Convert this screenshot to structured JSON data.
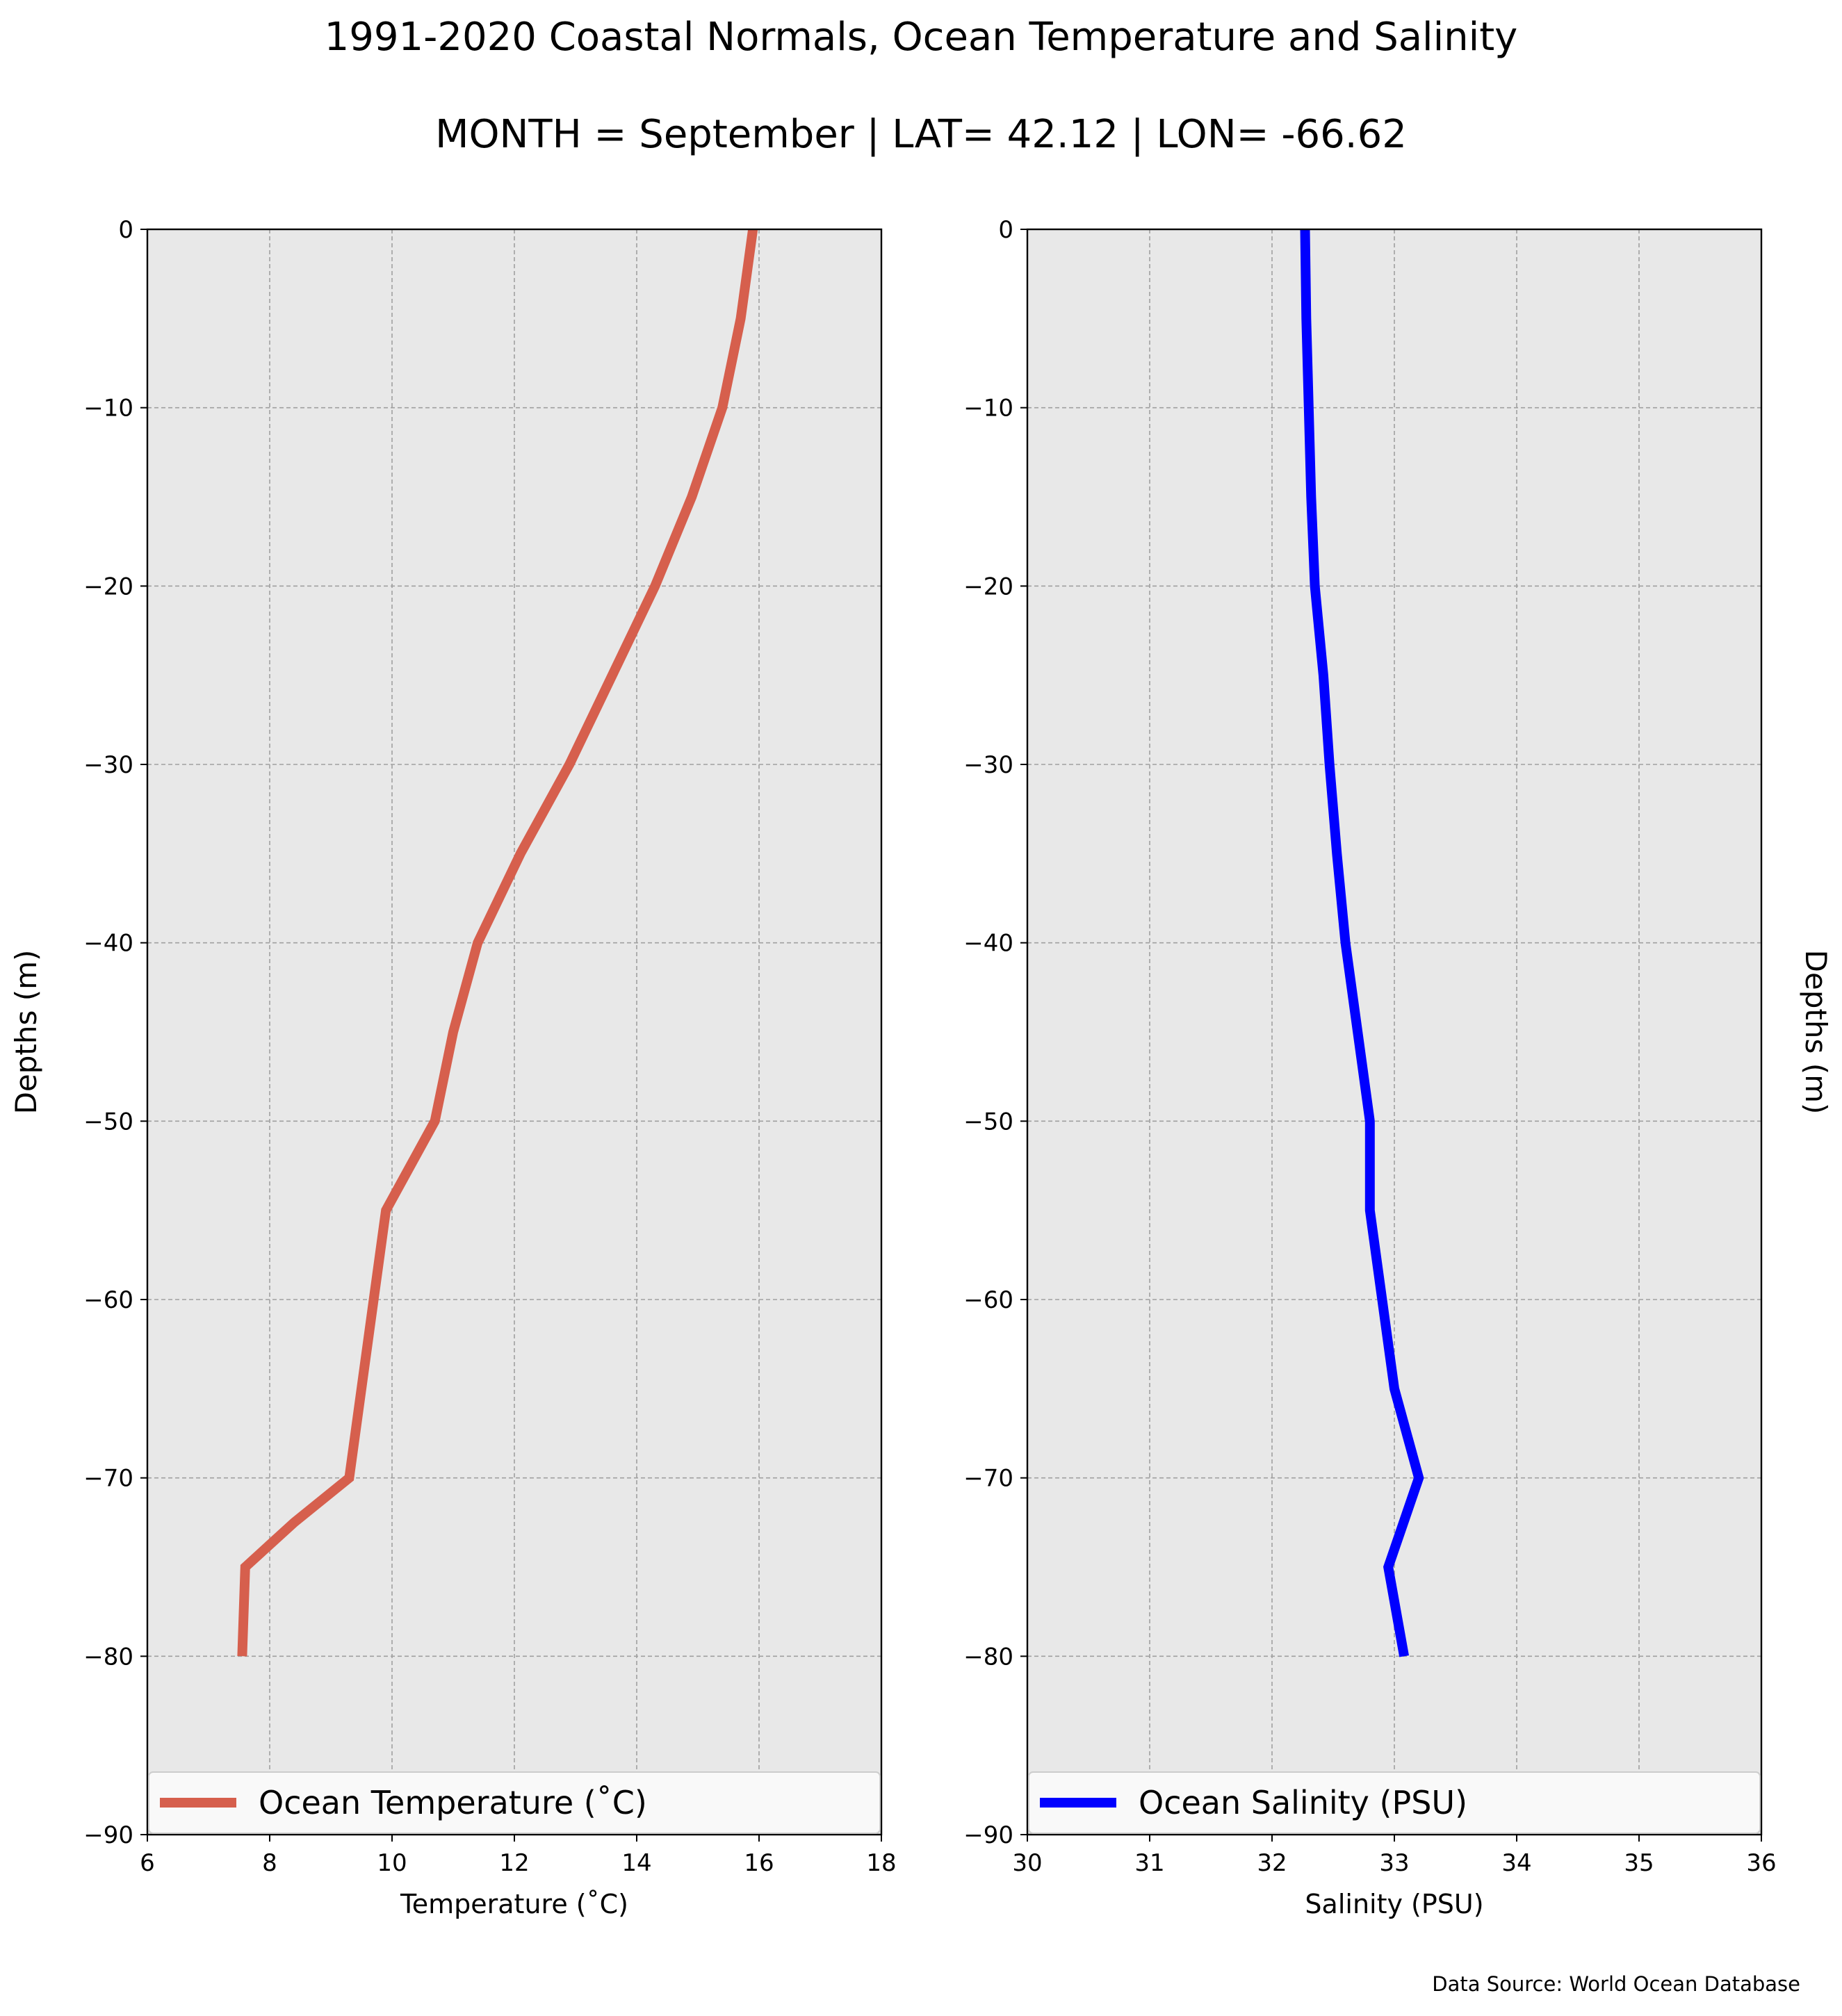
{
  "figure": {
    "title_line1": "1991-2020 Coastal Normals, Ocean Temperature and Salinity",
    "title_line2": "MONTH = September | LAT= 42.12 | LON= -66.62",
    "source": "Data Source: World Ocean Database"
  },
  "colors": {
    "plot_background": "#e8e8e8",
    "grid": "#a0a0a0",
    "temperature_line": "#d65f4d",
    "salinity_line": "#0000ff"
  },
  "chart_data": [
    {
      "type": "line",
      "orientation": "depth-profile",
      "xlabel": "Temperature ($^\\circ$C)",
      "xlabel_display": "Temperature (˚C)",
      "ylabel": "Depths (m)",
      "xlim": [
        6,
        18
      ],
      "ylim": [
        -90,
        0
      ],
      "xticks": [
        "6",
        "8",
        "10",
        "12",
        "14",
        "16",
        "18"
      ],
      "yticks": [
        "0",
        "−10",
        "−20",
        "−30",
        "−40",
        "−50",
        "−60",
        "−70",
        "−80",
        "−90"
      ],
      "grid": true,
      "legend_position": "lower",
      "series": [
        {
          "name": "Ocean Temperature (˚C)",
          "x": [
            15.9,
            15.7,
            15.4,
            14.9,
            14.3,
            13.6,
            12.9,
            12.1,
            11.4,
            11.0,
            10.7,
            9.9,
            9.7,
            9.5,
            9.3,
            8.4,
            7.6,
            7.55
          ],
          "y": [
            0,
            -5,
            -10,
            -15,
            -20,
            -25,
            -30,
            -35,
            -40,
            -45,
            -50,
            -55,
            -60,
            -65,
            -70,
            -72.5,
            -75,
            -80
          ]
        }
      ]
    },
    {
      "type": "line",
      "orientation": "depth-profile",
      "xlabel": "Salinity (PSU)",
      "ylabel": "Depths (m)",
      "xlim": [
        30,
        36
      ],
      "ylim": [
        -90,
        0
      ],
      "xticks": [
        "30",
        "31",
        "32",
        "33",
        "34",
        "35",
        "36"
      ],
      "yticks": [
        "0",
        "−10",
        "−20",
        "−30",
        "−40",
        "−50",
        "−60",
        "−70",
        "−80",
        "−90"
      ],
      "grid": true,
      "legend_position": "lower",
      "series": [
        {
          "name": "Ocean Salinity (PSU)",
          "x": [
            32.27,
            32.28,
            32.3,
            32.32,
            32.35,
            32.42,
            32.47,
            32.53,
            32.6,
            32.7,
            32.8,
            32.8,
            32.9,
            33.0,
            33.2,
            32.95,
            33.08
          ],
          "y": [
            0,
            -5,
            -10,
            -15,
            -20,
            -25,
            -30,
            -35,
            -40,
            -45,
            -50,
            -55,
            -60,
            -65,
            -70,
            -75,
            -80
          ]
        }
      ]
    }
  ]
}
